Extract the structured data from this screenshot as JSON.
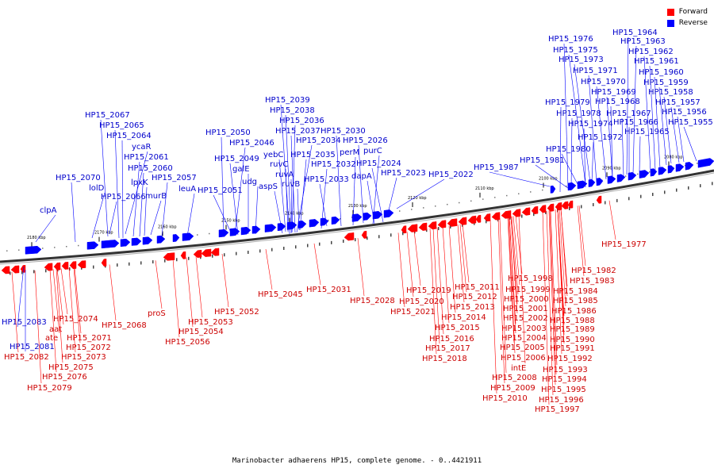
{
  "legend": {
    "forward_label": "Forward",
    "reverse_label": "Reverse",
    "forward_color": "#ff0000",
    "reverse_color": "#0000ff"
  },
  "caption": "Marinobacter adhaerens HP15, complete genome. - 0..4421911",
  "ticks": [
    "2180 kbp",
    "2170 kbp",
    "2160 kbp",
    "2150 kbp",
    "2140 kbp",
    "2130 kbp",
    "2120 kbp",
    "2110 kbp",
    "2100 kbp",
    "2090 kbp",
    "2080 kbp"
  ],
  "reverse_labels": [
    "clpA",
    "HP15_2070",
    "lolD",
    "HP15_2067",
    "HP15_2065",
    "HP15_2064",
    "ycaR",
    "HP15_2061",
    "HP15_2060",
    "lpxK",
    "HP15_2066",
    "murB",
    "HP15_2057",
    "leuA",
    "HP15_2050",
    "HP15_2046",
    "HP15_2049",
    "galE",
    "udg",
    "HP15_2051",
    "HP15_2039",
    "HP15_2038",
    "HP15_2036",
    "HP15_2037",
    "HP15_2034",
    "yebC",
    "ruvC",
    "HP15_2035",
    "ruvA",
    "aspS",
    "ruvB",
    "HP15_2032",
    "HP15_2033",
    "HP15_2030",
    "perM",
    "HP15_2026",
    "purC",
    "HP15_2024",
    "dapA",
    "HP15_2023",
    "HP15_2022",
    "HP15_1987",
    "HP15_1981",
    "HP15_1980",
    "HP15_1976",
    "HP15_1975",
    "HP15_1973",
    "HP15_1971",
    "HP15_1970",
    "HP15_1969",
    "HP15_1968",
    "HP15_1979",
    "HP15_1978",
    "HP15_1974",
    "HP15_1972",
    "HP15_1967",
    "HP15_1966",
    "HP15_1965",
    "HP15_1964",
    "HP15_1963",
    "HP15_1962",
    "HP15_1961",
    "HP15_1960",
    "HP15_1959",
    "HP15_1958",
    "HP15_1957",
    "HP15_1956",
    "HP15_1955",
    "HP15_2083",
    "HP15_2081"
  ],
  "forward_labels": [
    "HP15_2082",
    "HP15_2074",
    "aat",
    "ate",
    "HP15_2071",
    "HP15_2072",
    "HP15_2073",
    "HP15_2075",
    "HP15_2076",
    "HP15_2079",
    "HP15_2068",
    "proS",
    "HP15_2053",
    "HP15_2054",
    "HP15_2056",
    "HP15_2052",
    "HP15_2045",
    "HP15_2031",
    "HP15_2028",
    "HP15_1977",
    "HP15_1982",
    "HP15_1983",
    "HP15_1984",
    "HP15_1985",
    "HP15_1986",
    "HP15_1988",
    "HP15_1989",
    "HP15_1990",
    "HP15_1991",
    "HP15_1992",
    "HP15_1993",
    "HP15_1994",
    "HP15_1995",
    "HP15_1996",
    "HP15_1997",
    "HP15_1998",
    "HP15_1999",
    "HP15_2000",
    "HP15_2001",
    "HP15_2002",
    "HP15_2003",
    "HP15_2004",
    "HP15_2005",
    "HP15_2006",
    "intE",
    "HP15_2008",
    "HP15_2009",
    "HP15_2010",
    "HP15_2011",
    "HP15_2012",
    "HP15_2013",
    "HP15_2014",
    "HP15_2015",
    "HP15_2016",
    "HP15_2017",
    "HP15_2018",
    "HP15_2019",
    "HP15_2020",
    "HP15_2021"
  ]
}
